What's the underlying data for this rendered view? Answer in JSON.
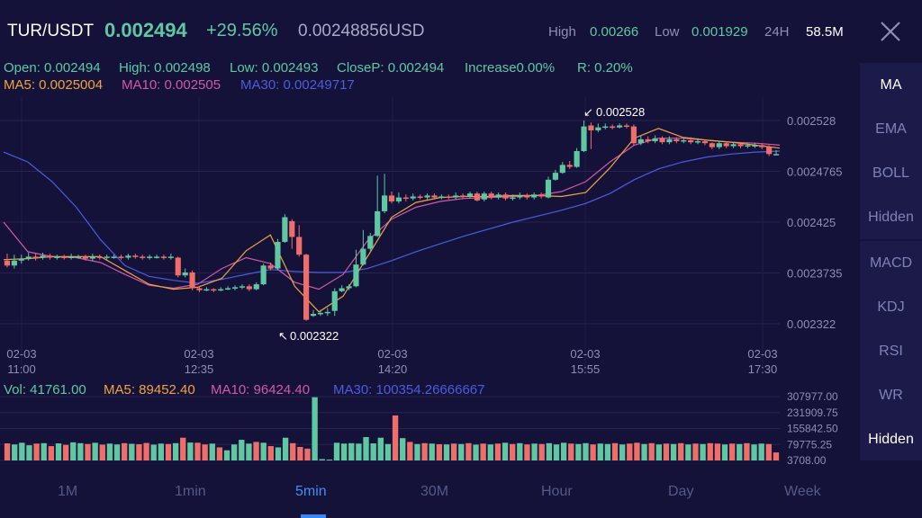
{
  "header": {
    "pair": "TUR/USDT",
    "price": "0.002494",
    "change": "+29.56%",
    "price_usd": "0.00248856USD",
    "high_label": "High",
    "high_value": "0.00266",
    "low_label": "Low",
    "low_value": "0.001929",
    "period_label": "24H",
    "volume_24h": "58.5M"
  },
  "ohlc_line": {
    "open": "Open: 0.002494",
    "high": "High: 0.002498",
    "low": "Low: 0.002493",
    "close": "CloseP: 0.002494",
    "increase": "Increase0.00%",
    "range": "R: 0.20%"
  },
  "ma_line": {
    "ma5": "MA5: 0.0025004",
    "ma10": "MA10: 0.002505",
    "ma30": "MA30: 0.00249717"
  },
  "vol_line": {
    "vol": "Vol: 41761.00",
    "ma5": "MA5: 89452.40",
    "ma10": "MA10: 96424.40",
    "ma30": "MA30: 100354.26666667"
  },
  "sidebar": {
    "main_indicators": [
      "MA",
      "EMA",
      "BOLL",
      "Hidden"
    ],
    "sub_indicators": [
      "MACD",
      "KDJ",
      "RSI",
      "WR",
      "Hidden"
    ]
  },
  "timeframes": [
    "1M",
    "1min",
    "5min",
    "30M",
    "Hour",
    "Day",
    "Week"
  ],
  "active_timeframe": "5min",
  "colors": {
    "up": "#5fc8a3",
    "down": "#ef6e6a",
    "ma5": "#f0a341",
    "ma10": "#d05aa3",
    "ma30": "#4b5cde",
    "background": "#15123a"
  },
  "chart_data": {
    "type": "candlestick",
    "price_axis_ticks": [
      "0.002528",
      "0.0024765",
      "0.002425",
      "0.0023735",
      "0.002322"
    ],
    "ylim": [
      0.002322,
      0.002528
    ],
    "time_labels": [
      {
        "date": "02-03",
        "time": "11:00"
      },
      {
        "date": "02-03",
        "time": "12:35"
      },
      {
        "date": "02-03",
        "time": "14:20"
      },
      {
        "date": "02-03",
        "time": "15:55"
      },
      {
        "date": "02-03",
        "time": "17:30"
      }
    ],
    "max_marker": "0.002528",
    "min_marker": "0.002322",
    "candles": [
      [
        0.002386,
        0.002381,
        0.002393,
        0.002379
      ],
      [
        0.002381,
        0.002386,
        0.002392,
        0.002378
      ],
      [
        0.002386,
        0.002388,
        0.002392,
        0.002383
      ],
      [
        0.002388,
        0.00239,
        0.002394,
        0.002386
      ],
      [
        0.00239,
        0.002389,
        0.002393,
        0.002386
      ],
      [
        0.002389,
        0.002391,
        0.002394,
        0.002387
      ],
      [
        0.002391,
        0.002389,
        0.002393,
        0.002387
      ],
      [
        0.002389,
        0.00239,
        0.002392,
        0.002387
      ],
      [
        0.00239,
        0.002389,
        0.002392,
        0.002387
      ],
      [
        0.002389,
        0.00239,
        0.002393,
        0.002387
      ],
      [
        0.00239,
        0.00239,
        0.002392,
        0.002388
      ],
      [
        0.00239,
        0.002388,
        0.002392,
        0.002386
      ],
      [
        0.002388,
        0.00239,
        0.002393,
        0.002386
      ],
      [
        0.00239,
        0.002389,
        0.002392,
        0.002387
      ],
      [
        0.002389,
        0.00239,
        0.002392,
        0.002387
      ],
      [
        0.00239,
        0.00239,
        0.002392,
        0.002388
      ],
      [
        0.00239,
        0.002389,
        0.002392,
        0.002387
      ],
      [
        0.002389,
        0.002391,
        0.002393,
        0.002387
      ],
      [
        0.002391,
        0.00239,
        0.002393,
        0.002388
      ],
      [
        0.00239,
        0.002389,
        0.002392,
        0.002387
      ],
      [
        0.002389,
        0.00239,
        0.002392,
        0.002387
      ],
      [
        0.00239,
        0.00239,
        0.002392,
        0.002388
      ],
      [
        0.00239,
        0.002389,
        0.002392,
        0.002387
      ],
      [
        0.002389,
        0.00239,
        0.002393,
        0.002387
      ],
      [
        0.002389,
        0.002371,
        0.00239,
        0.002369
      ],
      [
        0.002371,
        0.002374,
        0.002378,
        0.002369
      ],
      [
        0.002374,
        0.002358,
        0.002376,
        0.002356
      ],
      [
        0.002358,
        0.002356,
        0.00236,
        0.002354
      ],
      [
        0.002356,
        0.002357,
        0.002359,
        0.002355
      ],
      [
        0.002357,
        0.002356,
        0.002358,
        0.002354
      ],
      [
        0.002356,
        0.002357,
        0.002359,
        0.002355
      ],
      [
        0.002357,
        0.002358,
        0.00236,
        0.002356
      ],
      [
        0.002358,
        0.002359,
        0.002361,
        0.002356
      ],
      [
        0.002359,
        0.00236,
        0.002362,
        0.002357
      ],
      [
        0.00236,
        0.002357,
        0.002362,
        0.002355
      ],
      [
        0.002357,
        0.002362,
        0.002364,
        0.002356
      ],
      [
        0.002362,
        0.002381,
        0.002383,
        0.002361
      ],
      [
        0.002381,
        0.002378,
        0.002384,
        0.002376
      ],
      [
        0.002378,
        0.002405,
        0.002408,
        0.002377
      ],
      [
        0.002405,
        0.00243,
        0.002433,
        0.002404
      ],
      [
        0.002426,
        0.00241,
        0.002428,
        0.002398
      ],
      [
        0.00241,
        0.002392,
        0.002422,
        0.00239
      ],
      [
        0.002392,
        0.002326,
        0.002393,
        0.002325
      ],
      [
        0.00233,
        0.002332,
        0.002336,
        0.002329
      ],
      [
        0.002332,
        0.002333,
        0.002336,
        0.00233
      ],
      [
        0.002333,
        0.002334,
        0.002338,
        0.00233
      ],
      [
        0.002335,
        0.002355,
        0.002358,
        0.00233
      ],
      [
        0.002355,
        0.002358,
        0.002361,
        0.002354
      ],
      [
        0.002358,
        0.00236,
        0.002362,
        0.002356
      ],
      [
        0.00236,
        0.002382,
        0.002397,
        0.002359
      ],
      [
        0.002382,
        0.002398,
        0.002417,
        0.002381
      ],
      [
        0.002398,
        0.002411,
        0.002414,
        0.002396
      ],
      [
        0.002411,
        0.002436,
        0.002472,
        0.00241
      ],
      [
        0.002436,
        0.002452,
        0.002474,
        0.002434
      ],
      [
        0.002452,
        0.002446,
        0.002456,
        0.002444
      ],
      [
        0.002446,
        0.00245,
        0.002455,
        0.002444
      ],
      [
        0.00245,
        0.002449,
        0.002453,
        0.002446
      ],
      [
        0.002449,
        0.002451,
        0.002454,
        0.002447
      ],
      [
        0.002451,
        0.00245,
        0.002453,
        0.002448
      ],
      [
        0.00245,
        0.002452,
        0.002454,
        0.002448
      ],
      [
        0.002452,
        0.00245,
        0.002454,
        0.002448
      ],
      [
        0.00245,
        0.002451,
        0.002453,
        0.002448
      ],
      [
        0.002451,
        0.00245,
        0.002453,
        0.002448
      ],
      [
        0.00245,
        0.002452,
        0.002455,
        0.002448
      ],
      [
        0.002452,
        0.002451,
        0.002454,
        0.002449
      ],
      [
        0.002451,
        0.002454,
        0.002456,
        0.002449
      ],
      [
        0.002454,
        0.002447,
        0.002456,
        0.002446
      ],
      [
        0.002448,
        0.002454,
        0.002456,
        0.002446
      ],
      [
        0.002454,
        0.00245,
        0.002456,
        0.002448
      ],
      [
        0.00245,
        0.002453,
        0.002455,
        0.002448
      ],
      [
        0.002453,
        0.002449,
        0.002455,
        0.002447
      ],
      [
        0.002449,
        0.00245,
        0.002453,
        0.002447
      ],
      [
        0.00245,
        0.002452,
        0.002455,
        0.002448
      ],
      [
        0.002452,
        0.00245,
        0.002454,
        0.002448
      ],
      [
        0.00245,
        0.002453,
        0.002455,
        0.002448
      ],
      [
        0.002453,
        0.002451,
        0.002455,
        0.002449
      ],
      [
        0.00245,
        0.002468,
        0.002471,
        0.002449
      ],
      [
        0.002468,
        0.002475,
        0.002478,
        0.002467
      ],
      [
        0.002475,
        0.002483,
        0.002486,
        0.002474
      ],
      [
        0.002483,
        0.002481,
        0.002487,
        0.002479
      ],
      [
        0.002481,
        0.002497,
        0.0025,
        0.00248
      ],
      [
        0.002497,
        0.002522,
        0.002528,
        0.002496
      ],
      [
        0.002523,
        0.002518,
        0.002526,
        0.002499
      ],
      [
        0.002518,
        0.002521,
        0.002525,
        0.002516
      ],
      [
        0.002521,
        0.002522,
        0.002525,
        0.002519
      ],
      [
        0.002522,
        0.002521,
        0.002524,
        0.002519
      ],
      [
        0.002521,
        0.002523,
        0.002525,
        0.00252
      ],
      [
        0.002523,
        0.002522,
        0.002525,
        0.00252
      ],
      [
        0.002522,
        0.002505,
        0.002524,
        0.002503
      ],
      [
        0.002505,
        0.002509,
        0.002513,
        0.002503
      ],
      [
        0.002509,
        0.002507,
        0.002512,
        0.002505
      ],
      [
        0.002507,
        0.00251,
        0.002513,
        0.002505
      ],
      [
        0.00251,
        0.002506,
        0.002512,
        0.002504
      ],
      [
        0.002506,
        0.002509,
        0.002512,
        0.002504
      ],
      [
        0.002509,
        0.002507,
        0.002511,
        0.002505
      ],
      [
        0.002507,
        0.002508,
        0.002511,
        0.002505
      ],
      [
        0.002508,
        0.002506,
        0.002511,
        0.002504
      ],
      [
        0.002506,
        0.002507,
        0.00251,
        0.002504
      ],
      [
        0.002507,
        0.002505,
        0.002509,
        0.002503
      ],
      [
        0.002505,
        0.002501,
        0.002506,
        0.002499
      ],
      [
        0.002501,
        0.002505,
        0.002507,
        0.002499
      ],
      [
        0.002505,
        0.002502,
        0.002507,
        0.0025
      ],
      [
        0.002502,
        0.002504,
        0.002506,
        0.0025
      ],
      [
        0.002504,
        0.002502,
        0.002506,
        0.0025
      ],
      [
        0.002502,
        0.002503,
        0.002505,
        0.0025
      ],
      [
        0.002503,
        0.002503,
        0.002505,
        0.0025
      ],
      [
        0.002503,
        0.002501,
        0.002505,
        0.002499
      ],
      [
        0.002501,
        0.002494,
        0.002503,
        0.002492
      ],
      [
        0.002494,
        0.002494,
        0.002498,
        0.002493
      ]
    ],
    "ma5": [
      [
        0.002387,
        0.002388
      ],
      [
        0.002388,
        0.002388
      ],
      [
        0.00239,
        0.00239
      ],
      [
        0.00239,
        0.002389
      ],
      [
        0.00239,
        0.002376
      ],
      [
        0.002376,
        0.002362
      ],
      [
        0.002362,
        0.002357
      ],
      [
        0.002357,
        0.002359
      ],
      [
        0.002359,
        0.002368
      ],
      [
        0.002368,
        0.002396
      ],
      [
        0.002396,
        0.002412
      ],
      [
        0.002412,
        0.00236
      ],
      [
        0.00236,
        0.002334
      ],
      [
        0.002334,
        0.00235
      ],
      [
        0.00235,
        0.00239
      ],
      [
        0.00239,
        0.00243
      ],
      [
        0.00243,
        0.002445
      ],
      [
        0.002445,
        0.00245
      ],
      [
        0.00245,
        0.002451
      ],
      [
        0.002451,
        0.002451
      ],
      [
        0.002451,
        0.002452
      ],
      [
        0.002452,
        0.002452
      ],
      [
        0.002452,
        0.002451
      ],
      [
        0.002451,
        0.002455
      ],
      [
        0.002455,
        0.00248
      ],
      [
        0.00248,
        0.00251
      ],
      [
        0.00251,
        0.00252
      ],
      [
        0.00252,
        0.002511
      ],
      [
        0.002511,
        0.002508
      ],
      [
        0.002508,
        0.002506
      ],
      [
        0.002506,
        0.002503
      ],
      [
        0.002503,
        0.0025
      ]
    ],
    "ma10": [
      [
        0.002425,
        0.002395
      ],
      [
        0.002395,
        0.00239
      ],
      [
        0.00239,
        0.002389
      ],
      [
        0.002389,
        0.002384
      ],
      [
        0.002384,
        0.002372
      ],
      [
        0.002372,
        0.002361
      ],
      [
        0.002361,
        0.002358
      ],
      [
        0.002358,
        0.002362
      ],
      [
        0.002362,
        0.002378
      ],
      [
        0.002378,
        0.002389
      ],
      [
        0.002389,
        0.002383
      ],
      [
        0.002383,
        0.002364
      ],
      [
        0.002364,
        0.002357
      ],
      [
        0.002357,
        0.002372
      ],
      [
        0.002372,
        0.002406
      ],
      [
        0.002406,
        0.002428
      ],
      [
        0.002428,
        0.00244
      ],
      [
        0.00244,
        0.002446
      ],
      [
        0.002446,
        0.002449
      ],
      [
        0.002449,
        0.00245
      ],
      [
        0.00245,
        0.002451
      ],
      [
        0.002451,
        0.002452
      ],
      [
        0.002452,
        0.002456
      ],
      [
        0.002456,
        0.002466
      ],
      [
        0.002466,
        0.002486
      ],
      [
        0.002486,
        0.002503
      ],
      [
        0.002503,
        0.00251
      ],
      [
        0.00251,
        0.00251
      ],
      [
        0.00251,
        0.002508
      ],
      [
        0.002508,
        0.002506
      ],
      [
        0.002506,
        0.002505
      ],
      [
        0.002505,
        0.002503
      ]
    ],
    "ma30": [
      [
        0.002496,
        0.002486
      ],
      [
        0.002486,
        0.002466
      ],
      [
        0.002466,
        0.00244
      ],
      [
        0.00244,
        0.002407
      ],
      [
        0.002407,
        0.002381
      ],
      [
        0.002381,
        0.00237
      ],
      [
        0.00237,
        0.002366
      ],
      [
        0.002366,
        0.002363
      ],
      [
        0.002363,
        0.002367
      ],
      [
        0.002367,
        0.002372
      ],
      [
        0.002372,
        0.002377
      ],
      [
        0.002377,
        0.002375
      ],
      [
        0.002375,
        0.002374
      ],
      [
        0.002374,
        0.002374
      ],
      [
        0.002374,
        0.002378
      ],
      [
        0.002378,
        0.002386
      ],
      [
        0.002386,
        0.002395
      ],
      [
        0.002395,
        0.002403
      ],
      [
        0.002403,
        0.002411
      ],
      [
        0.002411,
        0.002418
      ],
      [
        0.002418,
        0.002425
      ],
      [
        0.002425,
        0.002431
      ],
      [
        0.002431,
        0.002437
      ],
      [
        0.002437,
        0.002444
      ],
      [
        0.002444,
        0.002454
      ],
      [
        0.002454,
        0.002468
      ],
      [
        0.002468,
        0.002479
      ],
      [
        0.002479,
        0.002486
      ],
      [
        0.002486,
        0.002491
      ],
      [
        0.002491,
        0.002494
      ],
      [
        0.002494,
        0.002496
      ],
      [
        0.002496,
        0.002497
      ]
    ],
    "volume_axis_ticks": [
      "307977.00",
      "231909.75",
      "155842.50",
      "79775.25",
      "3708.00"
    ],
    "volume_ylim": [
      3708,
      307977
    ],
    "volumes": [
      85000,
      80000,
      88000,
      76000,
      84000,
      86000,
      72000,
      85000,
      78000,
      90000,
      86000,
      82000,
      88000,
      79000,
      84000,
      80000,
      86000,
      83000,
      81000,
      87000,
      79000,
      84000,
      82000,
      86000,
      112000,
      89000,
      88000,
      80000,
      84000,
      66000,
      52000,
      80000,
      102000,
      84000,
      92000,
      88000,
      72000,
      66000,
      112000,
      86000,
      68000,
      60000,
      305000,
      10000,
      8000,
      88000,
      84000,
      86000,
      84000,
      115000,
      85000,
      112000,
      82000,
      218000,
      110000,
      92000,
      82000,
      86000,
      84000,
      81000,
      80000,
      84000,
      82000,
      86000,
      79000,
      84000,
      80000,
      84000,
      88000,
      82000,
      86000,
      80000,
      84000,
      82000,
      86000,
      80000,
      88000,
      84000,
      82000,
      86000,
      80000,
      84000,
      82000,
      86000,
      80000,
      84000,
      88000,
      82000,
      86000,
      80000,
      84000,
      82000,
      86000,
      80000,
      84000,
      82000,
      86000,
      84000,
      80000,
      84000,
      82000,
      86000,
      80000,
      84000,
      82000,
      41761
    ]
  }
}
